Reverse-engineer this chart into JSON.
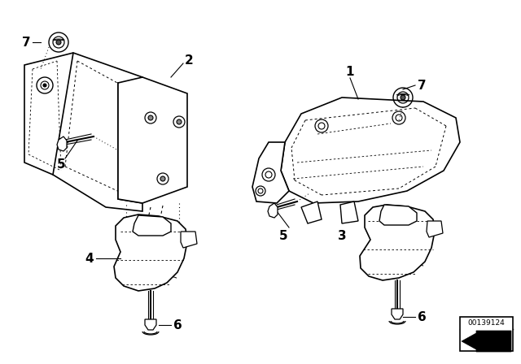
{
  "bg_color": "#ffffff",
  "line_color": "#000000",
  "part_number": "00139124",
  "figsize": [
    6.4,
    4.48
  ],
  "dpi": 100
}
